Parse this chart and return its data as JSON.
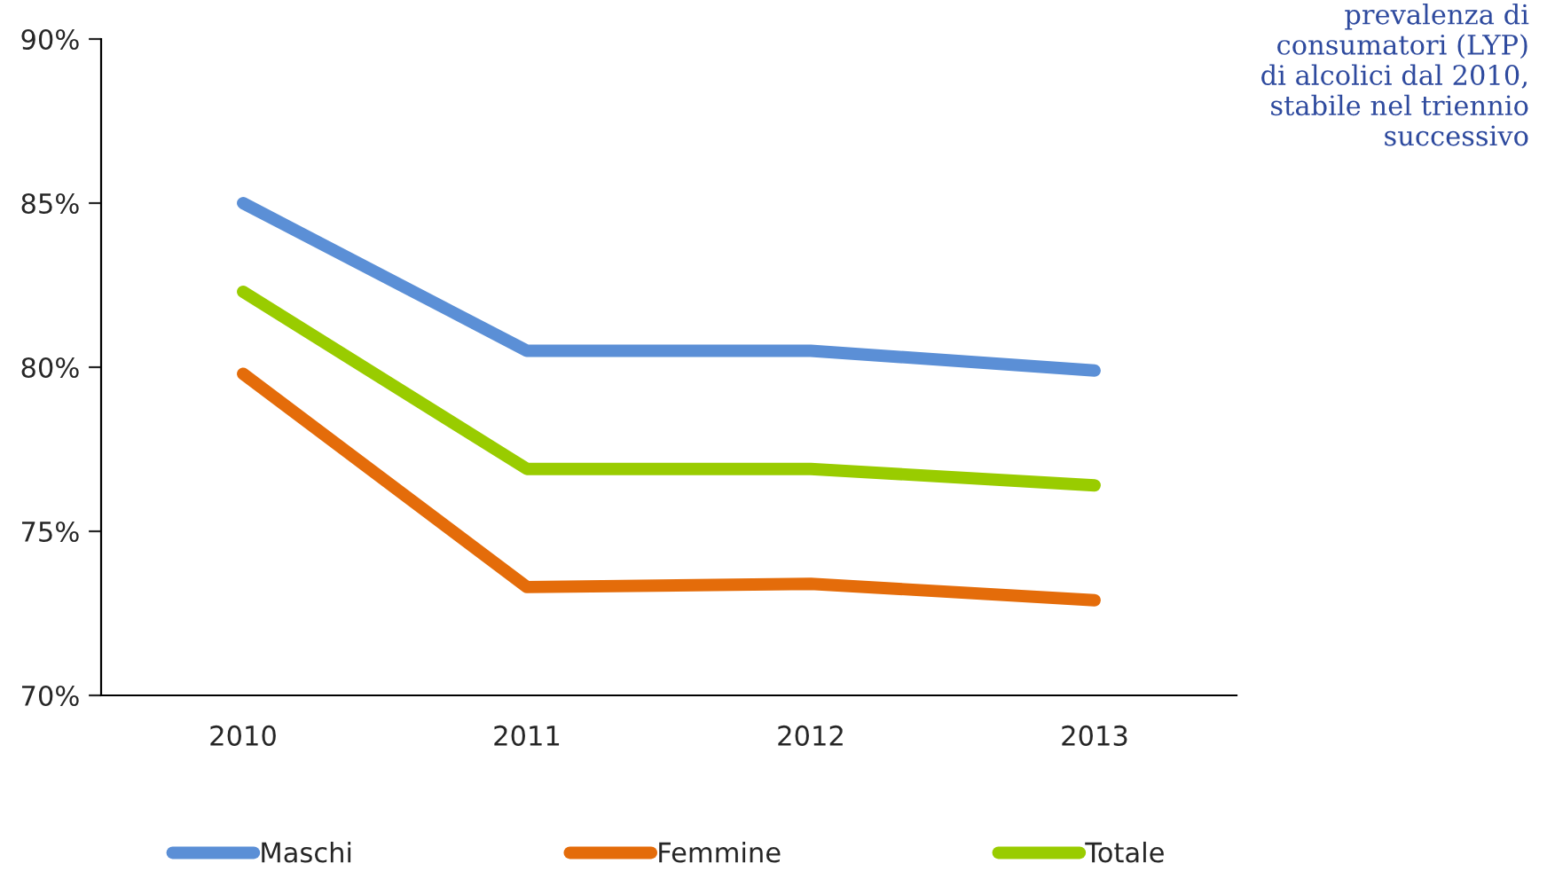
{
  "chart_data": {
    "type": "line",
    "categories": [
      "2010",
      "2011",
      "2012",
      "2013"
    ],
    "series": [
      {
        "name": "Maschi",
        "color": "#5b8fd6",
        "values": [
          85.0,
          80.5,
          80.5,
          79.9
        ]
      },
      {
        "name": "Femmine",
        "color": "#e46c0a",
        "values": [
          79.8,
          73.3,
          73.4,
          72.9
        ]
      },
      {
        "name": "Totale",
        "color": "#99cc00",
        "values": [
          82.3,
          76.9,
          76.9,
          76.4
        ]
      }
    ],
    "ylim": [
      70,
      90
    ],
    "yticks": [
      {
        "value": 70,
        "label": "70%"
      },
      {
        "value": 75,
        "label": "75%"
      },
      {
        "value": 80,
        "label": "80%"
      },
      {
        "value": 85,
        "label": "85%"
      },
      {
        "value": 90,
        "label": "90%"
      }
    ],
    "annotations": [
      "prevalenza di\nconsumatori (LYP)\ndi alcolici dal 2010,\nstabile nel triennio\nsuccessivo"
    ],
    "grid": false,
    "legend": "bottom",
    "marker": "none",
    "line_style": "solid"
  }
}
